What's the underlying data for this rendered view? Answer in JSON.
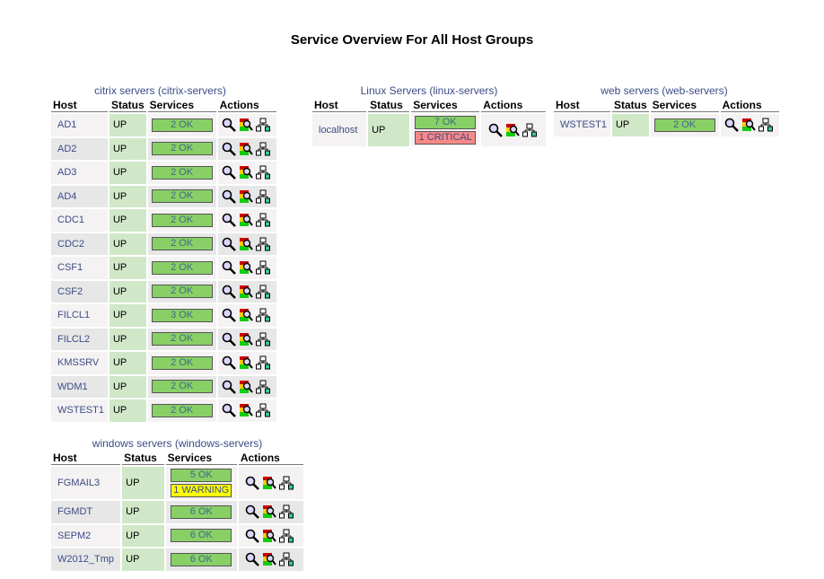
{
  "page_title": "Service Overview For All Host Groups",
  "headers": {
    "host": "Host",
    "status": "Status",
    "services": "Services",
    "actions": "Actions"
  },
  "groups": {
    "citrix": {
      "name": "citrix servers",
      "alias": "citrix-servers",
      "hosts": [
        {
          "host": "AD1",
          "status": "UP",
          "services": [
            "2 OK"
          ]
        },
        {
          "host": "AD2",
          "status": "UP",
          "services": [
            "2 OK"
          ]
        },
        {
          "host": "AD3",
          "status": "UP",
          "services": [
            "2 OK"
          ]
        },
        {
          "host": "AD4",
          "status": "UP",
          "services": [
            "2 OK"
          ]
        },
        {
          "host": "CDC1",
          "status": "UP",
          "services": [
            "2 OK"
          ]
        },
        {
          "host": "CDC2",
          "status": "UP",
          "services": [
            "2 OK"
          ]
        },
        {
          "host": "CSF1",
          "status": "UP",
          "services": [
            "2 OK"
          ]
        },
        {
          "host": "CSF2",
          "status": "UP",
          "services": [
            "2 OK"
          ]
        },
        {
          "host": "FILCL1",
          "status": "UP",
          "services": [
            "3 OK"
          ]
        },
        {
          "host": "FILCL2",
          "status": "UP",
          "services": [
            "2 OK"
          ]
        },
        {
          "host": "KMSSRV",
          "status": "UP",
          "services": [
            "2 OK"
          ]
        },
        {
          "host": "WDM1",
          "status": "UP",
          "services": [
            "2 OK"
          ]
        },
        {
          "host": "WSTEST1",
          "status": "UP",
          "services": [
            "2 OK"
          ]
        }
      ]
    },
    "linux": {
      "name": "Linux Servers",
      "alias": "linux-servers",
      "hosts": [
        {
          "host": "localhost",
          "status": "UP",
          "services": [
            "7 OK",
            "1 CRITICAL"
          ]
        }
      ]
    },
    "web": {
      "name": "web servers",
      "alias": "web-servers",
      "hosts": [
        {
          "host": "WSTEST1",
          "status": "UP",
          "services": [
            "2 OK"
          ]
        }
      ]
    },
    "windows": {
      "name": "windows servers",
      "alias": "windows-servers",
      "hosts": [
        {
          "host": "FGMAIL3",
          "status": "UP",
          "services": [
            "5 OK",
            "1 WARNING"
          ]
        },
        {
          "host": "FGMDT",
          "status": "UP",
          "services": [
            "6 OK"
          ]
        },
        {
          "host": "SEPM2",
          "status": "UP",
          "services": [
            "6 OK"
          ]
        },
        {
          "host": "W2012_Tmp",
          "status": "UP",
          "services": [
            "6 OK"
          ]
        }
      ]
    }
  }
}
